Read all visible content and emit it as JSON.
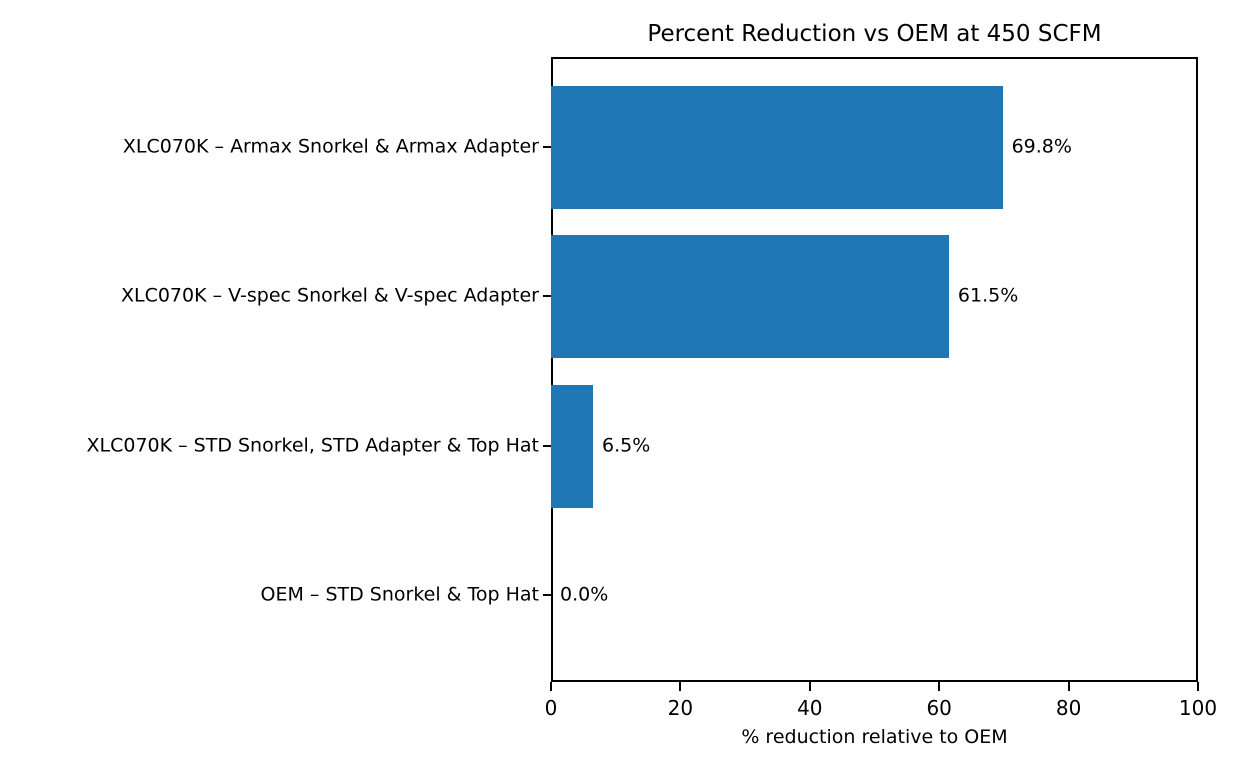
{
  "chart_data": {
    "type": "bar",
    "orientation": "horizontal",
    "title": "Percent Reduction vs OEM at 450 SCFM",
    "xlabel": "% reduction relative to OEM",
    "ylabel": "",
    "categories": [
      "XLC070K – Armax Snorkel & Armax Adapter",
      "XLC070K – V-spec Snorkel & V-spec Adapter",
      "XLC070K – STD Snorkel, STD Adapter & Top Hat",
      "OEM – STD Snorkel & Top Hat"
    ],
    "values": [
      69.8,
      61.5,
      6.5,
      0.0
    ],
    "value_labels": [
      "69.8%",
      "61.5%",
      "6.5%",
      "0.0%"
    ],
    "xlim": [
      0,
      100
    ],
    "xticks": [
      0,
      20,
      40,
      60,
      80,
      100
    ],
    "bar_color": "#1f77b4",
    "text_color": "#000000",
    "background_color": "#ffffff",
    "grid": false,
    "legend": null
  }
}
